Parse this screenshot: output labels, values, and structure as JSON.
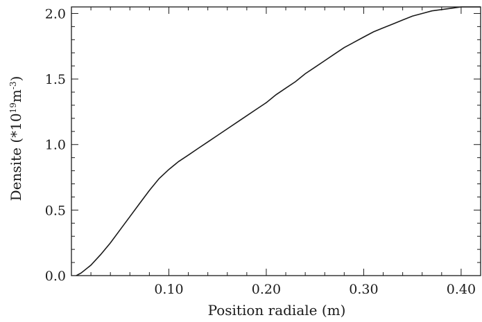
{
  "chart_data": {
    "type": "line",
    "title": "",
    "xlabel": "Position radiale (m)",
    "ylabel": "Densite (*10",
    "ylabel_exponent_1": "19",
    "ylabel_unit": "m",
    "ylabel_exponent_2": "-3",
    "ylabel_close": ")",
    "xlim": [
      0.0,
      0.42
    ],
    "ylim": [
      0.0,
      2.05
    ],
    "xticks": [
      0.1,
      0.2,
      0.3,
      0.4
    ],
    "xtick_labels": [
      "0.10",
      "0.20",
      "0.30",
      "0.40"
    ],
    "yticks": [
      0.0,
      0.5,
      1.0,
      1.5,
      2.0
    ],
    "ytick_labels": [
      "0.0",
      "0.5",
      "1.0",
      "1.5",
      "2.0"
    ],
    "grid": false,
    "series": [
      {
        "color": "#1a1a1a",
        "x": [
          0.005,
          0.01,
          0.02,
          0.03,
          0.04,
          0.05,
          0.06,
          0.07,
          0.08,
          0.09,
          0.1,
          0.11,
          0.12,
          0.13,
          0.14,
          0.15,
          0.16,
          0.17,
          0.18,
          0.19,
          0.2,
          0.21,
          0.22,
          0.23,
          0.24,
          0.25,
          0.26,
          0.27,
          0.28,
          0.29,
          0.3,
          0.31,
          0.32,
          0.33,
          0.34,
          0.35,
          0.36,
          0.37,
          0.38,
          0.39,
          0.4,
          0.41,
          0.42
        ],
        "y": [
          0.0,
          0.02,
          0.08,
          0.16,
          0.25,
          0.35,
          0.45,
          0.55,
          0.65,
          0.74,
          0.81,
          0.87,
          0.92,
          0.97,
          1.02,
          1.07,
          1.12,
          1.17,
          1.22,
          1.27,
          1.32,
          1.38,
          1.43,
          1.48,
          1.54,
          1.59,
          1.64,
          1.69,
          1.74,
          1.78,
          1.82,
          1.86,
          1.89,
          1.92,
          1.95,
          1.98,
          2.0,
          2.02,
          2.03,
          2.04,
          2.05,
          2.05,
          2.05
        ]
      }
    ]
  }
}
